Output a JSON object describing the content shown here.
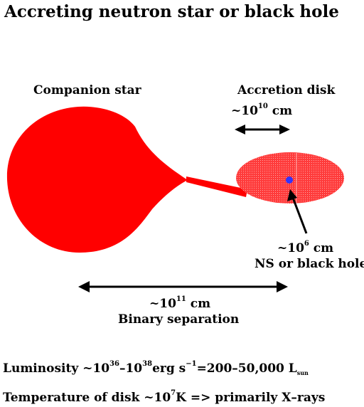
{
  "title": "Accreting neutron star or black hole",
  "labels": {
    "companion_star": "Companion star",
    "accretion_disk": "Accretion disk",
    "disk_size": {
      "prefix": "~10",
      "exp": "10",
      "unit": " cm"
    },
    "object_size": {
      "prefix": "~10",
      "exp": "6",
      "unit": " cm"
    },
    "object_name": "NS or black hole",
    "separation": {
      "prefix": "~10",
      "exp": "11",
      "unit": " cm"
    },
    "separation_label": "Binary separation"
  },
  "luminosity": {
    "prefix": "Luminosity ~10",
    "exp1": "36",
    "mid": "–10",
    "exp2": "38",
    "unit": "erg s",
    "exp3": "−1",
    "value": "=200–50,000 L",
    "sub": "sun"
  },
  "temperature": {
    "prefix": "Temperature of disk ~10",
    "exp": "7",
    "suffix": "K => primarily X–rays"
  },
  "colors": {
    "star": "#ff0000",
    "disk": "#ff2a2a",
    "compact_object": "#3333ff",
    "arrows": "#000000"
  }
}
